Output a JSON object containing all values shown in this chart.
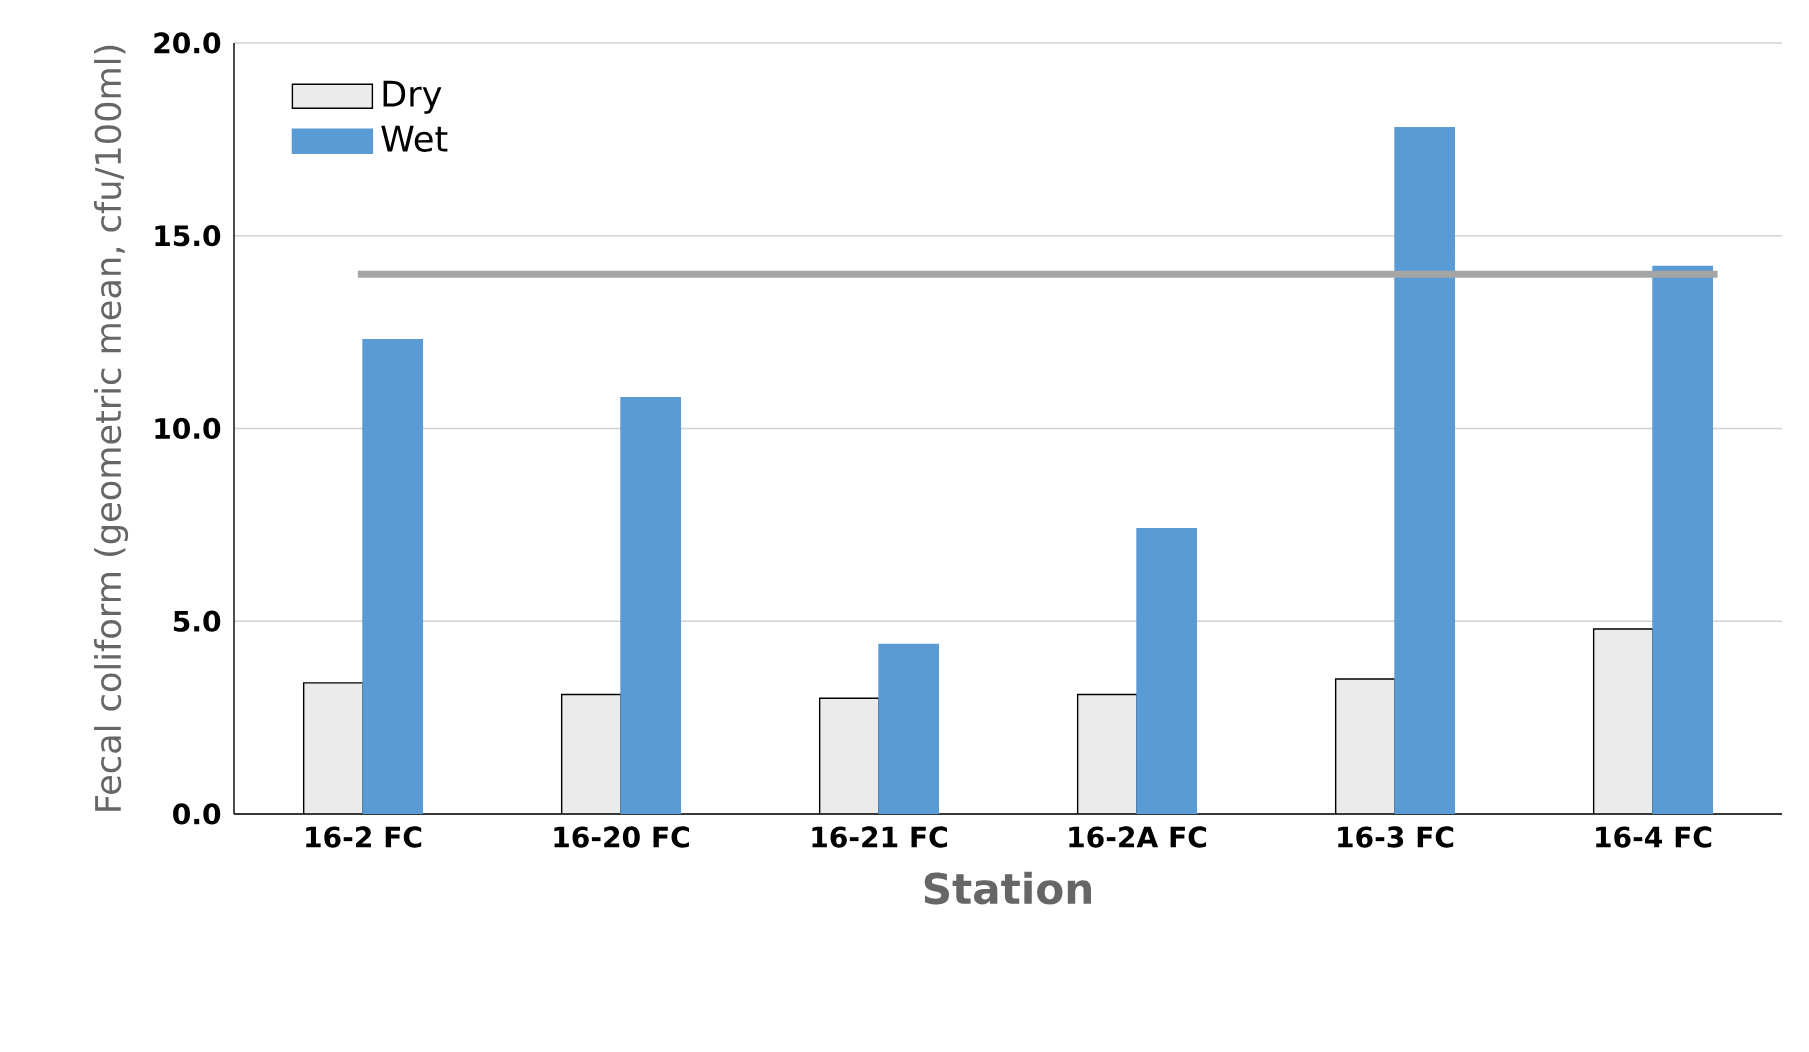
{
  "chart_data": {
    "type": "bar",
    "xlabel": "Station",
    "ylabel": "Fecal coliform (geometric mean, cfu/100ml)",
    "categories": [
      "16-2 FC",
      "16-20 FC",
      "16-21 FC",
      "16-2A FC",
      "16-3 FC",
      "16-4 FC"
    ],
    "series": [
      {
        "name": "Dry",
        "color": "#ebebeb",
        "values": [
          3.4,
          3.1,
          3.0,
          3.1,
          3.5,
          4.8
        ]
      },
      {
        "name": "Wet",
        "color": "#5b9bd5",
        "values": [
          12.3,
          10.8,
          4.4,
          7.4,
          17.8,
          14.2
        ]
      }
    ],
    "ylim": [
      0,
      20
    ],
    "yticks": [
      {
        "value": 0,
        "label": "0.0"
      },
      {
        "value": 5,
        "label": "5.0"
      },
      {
        "value": 10,
        "label": "10.0"
      },
      {
        "value": 15,
        "label": "15.0"
      },
      {
        "value": 20,
        "label": "20.0"
      }
    ],
    "ref_lines": [
      {
        "axis": "y",
        "value": 14,
        "color": "#a5a5a5"
      }
    ],
    "grid": "y",
    "legend": "top left"
  }
}
